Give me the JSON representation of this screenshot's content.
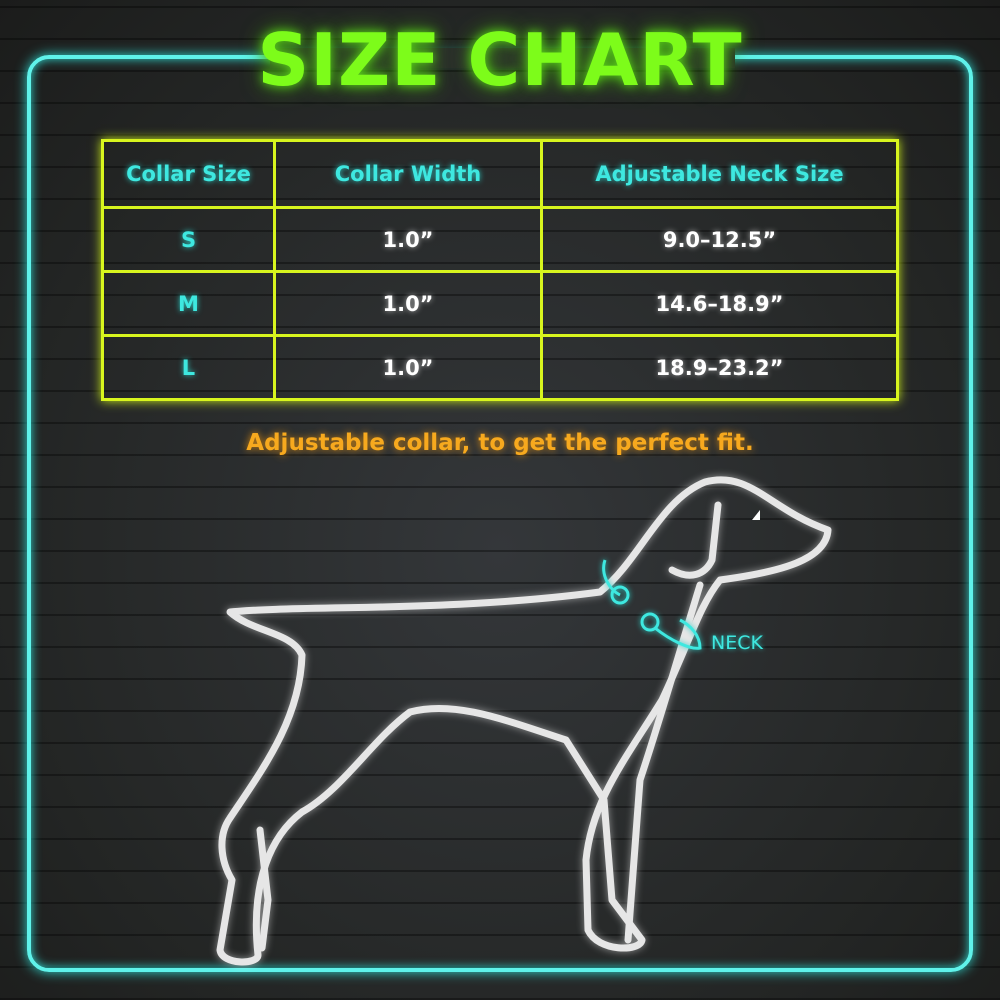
{
  "title": "SIZE CHART",
  "table": {
    "headers": [
      "Collar Size",
      "Collar Width",
      "Adjustable Neck Size"
    ],
    "rows": [
      [
        "S",
        "1.0”",
        "9.0–12.5”"
      ],
      [
        "M",
        "1.0”",
        "14.6–18.9”"
      ],
      [
        "L",
        "1.0”",
        "18.9–23.2”"
      ]
    ]
  },
  "caption": "Adjustable collar, to get the perfect fit.",
  "diagram": {
    "neck_label": "NECK"
  },
  "colors": {
    "title": "#7dfc1a",
    "frame": "#5ff2ea",
    "table_border": "#d8f51e",
    "header_text": "#3ee8e0",
    "caption": "#f7a91e",
    "dog_outline": "#e6e6e6"
  }
}
